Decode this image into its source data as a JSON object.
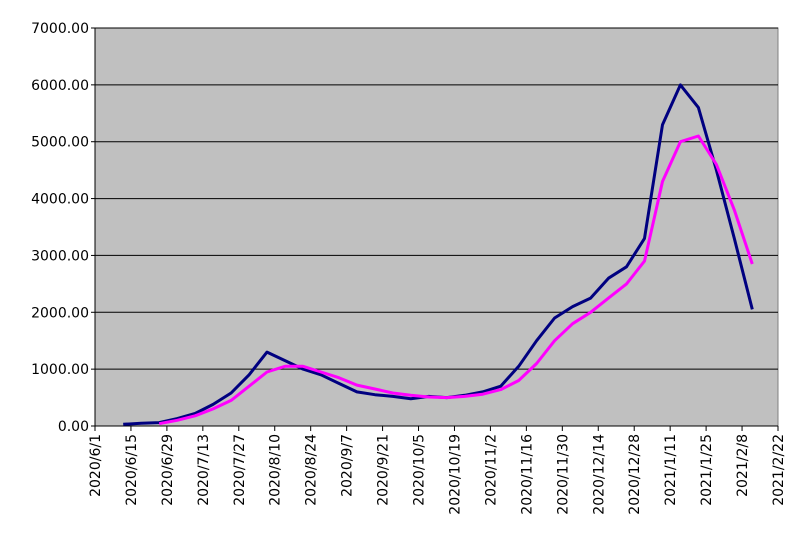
{
  "chart_data": {
    "type": "line",
    "xlim": [
      "2020/6/1",
      "2021/2/22"
    ],
    "xticks": [
      "2020/6/1",
      "2020/6/15",
      "2020/6/29",
      "2020/7/13",
      "2020/7/27",
      "2020/8/10",
      "2020/8/24",
      "2020/9/7",
      "2020/9/21",
      "2020/10/5",
      "2020/10/19",
      "2020/11/2",
      "2020/11/16",
      "2020/11/30",
      "2020/12/14",
      "2020/12/28",
      "2021/1/11",
      "2021/1/25",
      "2021/2/8",
      "2021/2/22"
    ],
    "ylim": [
      0,
      7000
    ],
    "yticks": [
      {
        "value": 0,
        "label": "0.00"
      },
      {
        "value": 1000,
        "label": "1000.00"
      },
      {
        "value": 2000,
        "label": "2000.00"
      },
      {
        "value": 3000,
        "label": "3000.00"
      },
      {
        "value": 4000,
        "label": "4000.00"
      },
      {
        "value": 5000,
        "label": "5000.00"
      },
      {
        "value": 6000,
        "label": "6000.00"
      },
      {
        "value": 7000,
        "label": "7000.00"
      }
    ],
    "grid": true,
    "x": [
      "2020/6/12",
      "2020/6/19",
      "2020/6/26",
      "2020/7/3",
      "2020/7/10",
      "2020/7/17",
      "2020/7/24",
      "2020/7/31",
      "2020/8/7",
      "2020/8/14",
      "2020/8/21",
      "2020/8/28",
      "2020/9/4",
      "2020/9/11",
      "2020/9/18",
      "2020/9/25",
      "2020/10/2",
      "2020/10/9",
      "2020/10/16",
      "2020/10/23",
      "2020/10/30",
      "2020/11/6",
      "2020/11/13",
      "2020/11/20",
      "2020/11/27",
      "2020/12/4",
      "2020/12/11",
      "2020/12/18",
      "2020/12/25",
      "2021/1/1",
      "2021/1/8",
      "2021/1/15",
      "2021/1/22",
      "2021/1/29",
      "2021/2/5",
      "2021/2/12"
    ],
    "series": [
      {
        "color": "#000080",
        "values": [
          30,
          50,
          60,
          130,
          220,
          380,
          580,
          900,
          1300,
          1150,
          1000,
          900,
          750,
          600,
          550,
          520,
          480,
          520,
          500,
          540,
          600,
          700,
          1050,
          1500,
          1900,
          2100,
          2250,
          2600,
          2800,
          3300,
          5300,
          6000,
          5600,
          4500,
          3300,
          2050
        ]
      },
      {
        "color": "#ff00ff",
        "values": [
          null,
          null,
          40,
          100,
          180,
          300,
          450,
          700,
          950,
          1050,
          1050,
          950,
          850,
          720,
          650,
          580,
          540,
          510,
          500,
          520,
          560,
          640,
          800,
          1100,
          1500,
          1800,
          2000,
          2250,
          2500,
          2900,
          4300,
          5000,
          5100,
          4600,
          3800,
          2850
        ]
      }
    ]
  }
}
